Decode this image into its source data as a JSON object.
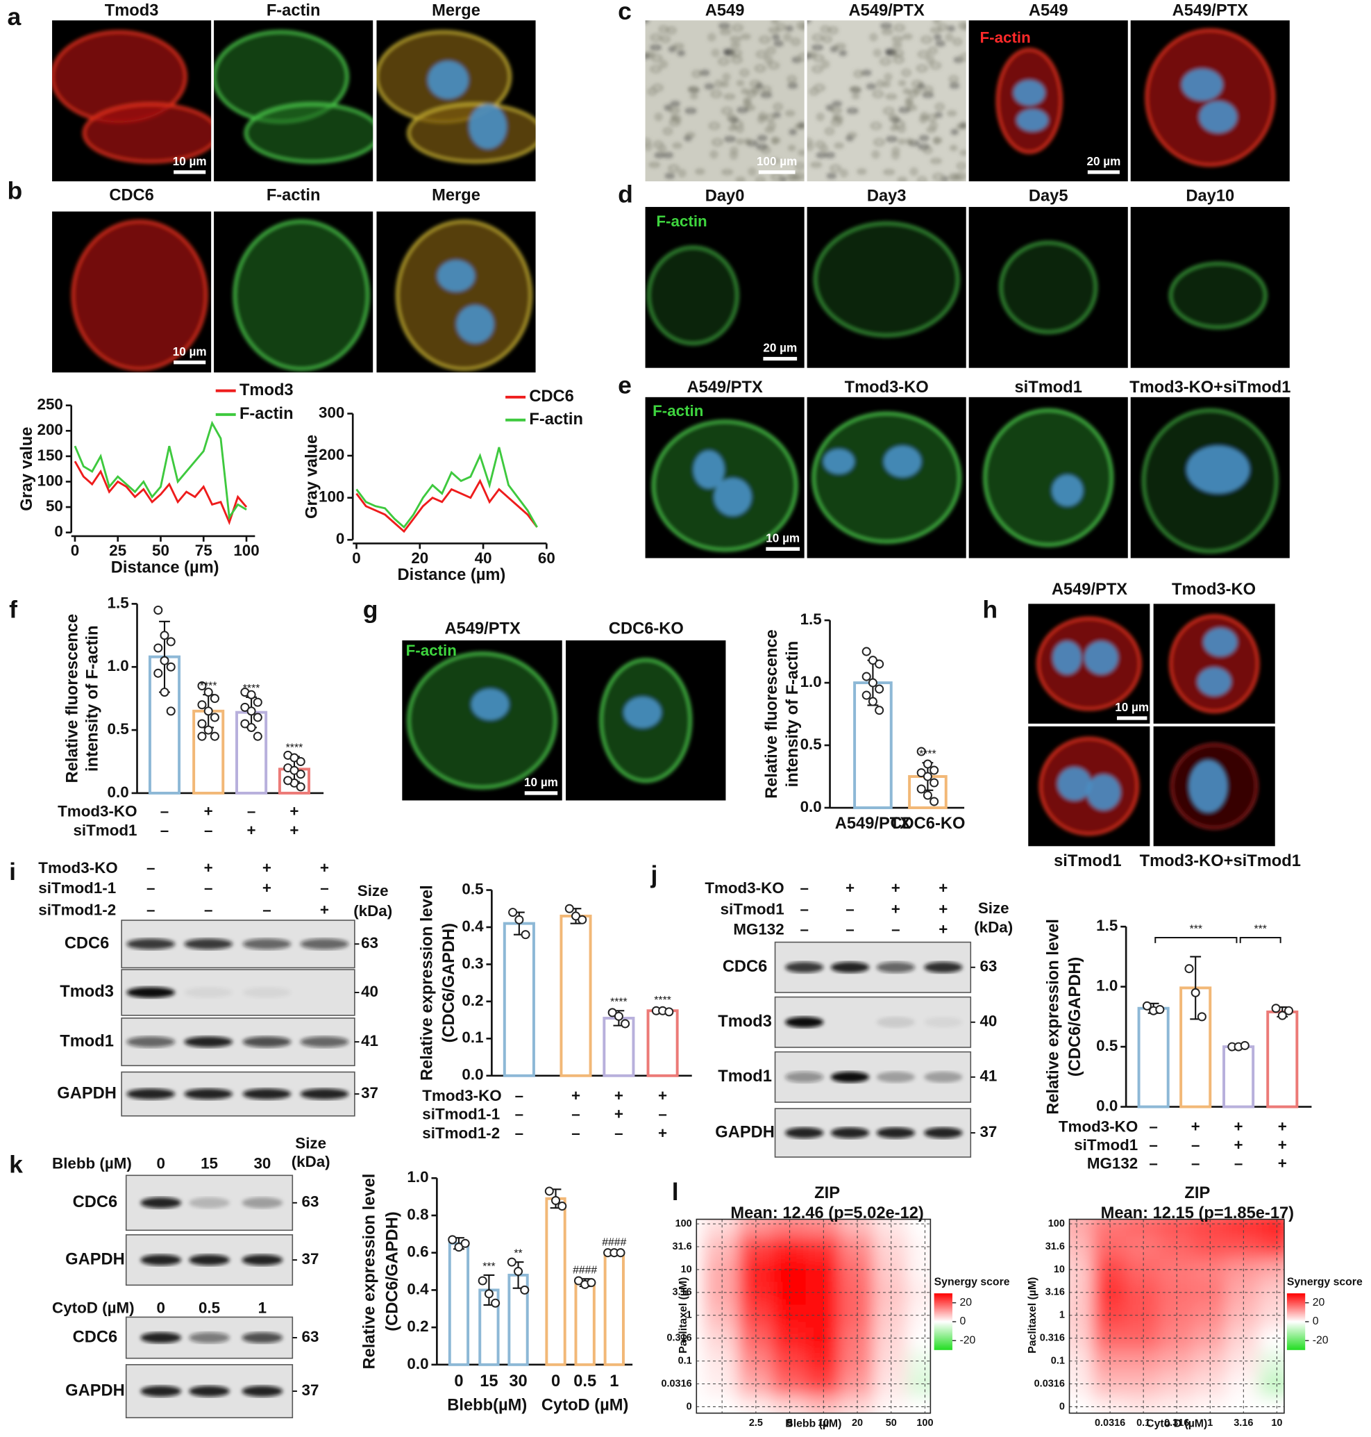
{
  "panel_labels": [
    "a",
    "b",
    "c",
    "d",
    "e",
    "f",
    "g",
    "h",
    "i",
    "j",
    "k",
    "l"
  ],
  "panel_a": {
    "headers": [
      "Tmod3",
      "F-actin",
      "Merge"
    ],
    "scale_bar": "10 µm"
  },
  "panel_b": {
    "headers": [
      "CDC6",
      "F-actin",
      "Merge"
    ],
    "scale_bar": "10 µm"
  },
  "panel_c": {
    "headers": [
      "A549",
      "A549/PTX",
      "A549",
      "A549/PTX"
    ],
    "stain": "F-actin",
    "scale_bars": [
      "100 µm",
      "20 µm"
    ]
  },
  "panel_d": {
    "headers": [
      "Day0",
      "Day3",
      "Day5",
      "Day10"
    ],
    "stain": "F-actin",
    "scale_bar": "20 µm"
  },
  "panel_e": {
    "headers": [
      "A549/PTX",
      "Tmod3-KO",
      "siTmod1",
      "Tmod3-KO+siTmod1"
    ],
    "stain": "F-actin",
    "scale_bar": "10 µm"
  },
  "panel_g_images": {
    "headers": [
      "A549/PTX",
      "CDC6-KO"
    ],
    "stain": "F-actin",
    "scale_bar": "10 µm"
  },
  "panel_h": {
    "headers": [
      "A549/PTX",
      "Tmod3-KO"
    ],
    "footers": [
      "siTmod1",
      "Tmod3-KO+siTmod1"
    ],
    "scale_bar": "10 µm"
  },
  "blot_i": {
    "conditions": [
      {
        "name": "Tmod3-KO",
        "signs": [
          "–",
          "+",
          "+",
          "+"
        ]
      },
      {
        "name": "siTmod1-1",
        "signs": [
          "–",
          "–",
          "+",
          "–"
        ]
      },
      {
        "name": "siTmod1-2",
        "signs": [
          "–",
          "–",
          "–",
          "+"
        ]
      }
    ],
    "size_label": [
      "Size",
      "(kDa)"
    ],
    "rows": [
      {
        "name": "CDC6",
        "kda": 63
      },
      {
        "name": "Tmod3",
        "kda": 40
      },
      {
        "name": "Tmod1",
        "kda": 41
      },
      {
        "name": "GAPDH",
        "kda": 37
      }
    ]
  },
  "blot_j": {
    "conditions": [
      {
        "name": "Tmod3-KO",
        "signs": [
          "–",
          "+",
          "+",
          "+"
        ]
      },
      {
        "name": "siTmod1",
        "signs": [
          "–",
          "–",
          "+",
          "+"
        ]
      },
      {
        "name": "MG132",
        "signs": [
          "–",
          "–",
          "–",
          "+"
        ]
      }
    ],
    "size_label": [
      "Size",
      "(kDa)"
    ],
    "rows": [
      {
        "name": "CDC6",
        "kda": 63
      },
      {
        "name": "Tmod3",
        "kda": 40
      },
      {
        "name": "Tmod1",
        "kda": 41
      },
      {
        "name": "GAPDH",
        "kda": 37
      }
    ]
  },
  "blot_k": {
    "size_label": [
      "Size",
      "(kDa)"
    ],
    "treatments": [
      {
        "name": "Blebb (µM)",
        "doses": [
          "0",
          "15",
          "30"
        ],
        "rows": [
          {
            "name": "CDC6",
            "kda": 63
          },
          {
            "name": "GAPDH",
            "kda": 37
          }
        ]
      },
      {
        "name": "CytoD (µM)",
        "doses": [
          "0",
          "0.5",
          "1"
        ],
        "rows": [
          {
            "name": "CDC6",
            "kda": 63
          },
          {
            "name": "GAPDH",
            "kda": 37
          }
        ]
      }
    ]
  },
  "chart_data": [
    {
      "type": "line",
      "xlabel": "Distance (µm)",
      "ylabel": "Gray value",
      "xlim": [
        0,
        105
      ],
      "ylim": [
        0,
        250
      ],
      "xticks": [
        0,
        25,
        50,
        75,
        100
      ],
      "yticks": [
        0,
        50,
        100,
        150,
        200,
        250
      ],
      "x": [
        0,
        5,
        10,
        15,
        20,
        25,
        30,
        35,
        40,
        45,
        50,
        55,
        60,
        65,
        70,
        75,
        80,
        85,
        90,
        95,
        100
      ],
      "series": [
        {
          "name": "Tmod3",
          "color": "#ee1c1c",
          "values": [
            140,
            110,
            95,
            120,
            80,
            100,
            90,
            70,
            85,
            60,
            75,
            95,
            60,
            80,
            70,
            90,
            55,
            60,
            20,
            70,
            50
          ]
        },
        {
          "name": "F-actin",
          "color": "#3ec93e",
          "values": [
            170,
            130,
            120,
            150,
            90,
            110,
            95,
            80,
            100,
            70,
            90,
            170,
            100,
            120,
            140,
            160,
            215,
            185,
            30,
            55,
            45
          ]
        }
      ]
    },
    {
      "type": "line",
      "xlabel": "Distance (µm)",
      "ylabel": "Gray value",
      "xlim": [
        0,
        60
      ],
      "ylim": [
        0,
        300
      ],
      "xticks": [
        0,
        20,
        40,
        60
      ],
      "yticks": [
        0,
        100,
        200,
        300
      ],
      "x": [
        0,
        3,
        6,
        9,
        12,
        15,
        18,
        21,
        24,
        27,
        30,
        33,
        36,
        39,
        42,
        45,
        48,
        51,
        54,
        57
      ],
      "series": [
        {
          "name": "CDC6",
          "color": "#ee1c1c",
          "values": [
            110,
            80,
            70,
            60,
            40,
            20,
            50,
            80,
            100,
            90,
            120,
            110,
            100,
            140,
            90,
            120,
            100,
            80,
            60,
            30
          ]
        },
        {
          "name": "F-actin",
          "color": "#3ec93e",
          "values": [
            120,
            90,
            80,
            75,
            50,
            30,
            60,
            100,
            130,
            110,
            160,
            140,
            150,
            200,
            130,
            220,
            130,
            100,
            70,
            30
          ]
        }
      ]
    },
    {
      "type": "bar",
      "ylabel": [
        "Relative  fluorescence",
        "intensity of F-actin"
      ],
      "ylim": [
        0,
        1.5
      ],
      "yticks": [
        {
          "value": 0,
          "label": "0.0"
        },
        {
          "value": 0.5,
          "label": "0.5"
        },
        {
          "value": 1,
          "label": "1.0"
        },
        {
          "value": 1.5,
          "label": "1.5"
        }
      ],
      "colors": [
        "#8db8d6",
        "#f2b877",
        "#b8b0dc",
        "#ec7a77"
      ],
      "values": [
        1.08,
        0.65,
        0.64,
        0.19
      ],
      "errors": [
        0.28,
        0.13,
        0.12,
        0.1
      ],
      "points": [
        [
          1.45,
          1.25,
          1.2,
          1.15,
          1.05,
          1.0,
          0.95,
          0.8,
          0.65
        ],
        [
          0.85,
          0.8,
          0.75,
          0.7,
          0.65,
          0.6,
          0.55,
          0.5,
          0.45,
          0.45
        ],
        [
          0.8,
          0.78,
          0.72,
          0.68,
          0.65,
          0.6,
          0.55,
          0.52,
          0.45
        ],
        [
          0.3,
          0.28,
          0.25,
          0.2,
          0.18,
          0.15,
          0.1,
          0.08,
          0.05,
          0.1
        ]
      ],
      "significance": [
        null,
        "****",
        "****",
        "****"
      ],
      "conditions": [
        {
          "name": "Tmod3-KO",
          "signs": [
            "–",
            "+",
            "–",
            "+"
          ]
        },
        {
          "name": "siTmod1",
          "signs": [
            "–",
            "–",
            "+",
            "+"
          ]
        }
      ]
    },
    {
      "type": "bar",
      "ylabel": [
        "Relative  fluorescence",
        "intensity of F-actin"
      ],
      "ylim": [
        0,
        1.5
      ],
      "yticks": [
        {
          "value": 0,
          "label": "0.0"
        },
        {
          "value": 0.5,
          "label": "0.5"
        },
        {
          "value": 1,
          "label": "1.0"
        },
        {
          "value": 1.5,
          "label": "1.5"
        }
      ],
      "categories": [
        "A549/PTX",
        "CDC6-KO"
      ],
      "colors": [
        "#8db8d6",
        "#f2b877"
      ],
      "values": [
        1.0,
        0.25
      ],
      "errors": [
        0.18,
        0.11
      ],
      "points": [
        [
          1.25,
          1.18,
          1.15,
          1.05,
          1.0,
          0.95,
          0.9,
          0.85,
          0.78
        ],
        [
          0.45,
          0.35,
          0.3,
          0.28,
          0.25,
          0.2,
          0.15,
          0.1,
          0.05
        ]
      ],
      "significance": [
        null,
        "****"
      ]
    },
    {
      "type": "bar",
      "ylabel": [
        "Relative expression level",
        "(CDC6/GAPDH)"
      ],
      "ylim": [
        0,
        0.5
      ],
      "yticks": [
        {
          "value": 0,
          "label": "0.0"
        },
        0.1,
        0.2,
        0.3,
        0.4,
        0.5
      ],
      "colors": [
        "#8db8d6",
        "#f2b877",
        "#b8b0dc",
        "#ec7a77"
      ],
      "values": [
        0.41,
        0.43,
        0.155,
        0.175
      ],
      "errors": [
        0.03,
        0.02,
        0.02,
        0.005
      ],
      "points": [
        [
          0.44,
          0.42,
          0.38
        ],
        [
          0.45,
          0.43,
          0.42
        ],
        [
          0.17,
          0.16,
          0.14
        ],
        [
          0.175,
          0.175,
          0.172
        ]
      ],
      "significance": [
        null,
        null,
        "****",
        "****"
      ],
      "conditions": [
        {
          "name": "Tmod3-KO",
          "signs": [
            "–",
            "+",
            "+",
            "+"
          ]
        },
        {
          "name": "siTmod1-1",
          "signs": [
            "–",
            "–",
            "+",
            "–"
          ]
        },
        {
          "name": "siTmod1-2",
          "signs": [
            "–",
            "–",
            "–",
            "+"
          ]
        }
      ]
    },
    {
      "type": "bar",
      "ylabel": [
        "Relative expression level",
        "(CDC6/GAPDH)"
      ],
      "ylim": [
        0,
        1.5
      ],
      "yticks": [
        {
          "value": 0,
          "label": "0.0"
        },
        {
          "value": 0.5,
          "label": "0.5"
        },
        {
          "value": 1,
          "label": "1.0"
        },
        {
          "value": 1.5,
          "label": "1.5"
        }
      ],
      "colors": [
        "#8db8d6",
        "#f2b877",
        "#b8b0dc",
        "#ec7a77"
      ],
      "values": [
        0.82,
        0.99,
        0.5,
        0.79
      ],
      "errors": [
        0.04,
        0.26,
        0.01,
        0.04
      ],
      "points": [
        [
          0.84,
          0.8,
          0.81
        ],
        [
          1.15,
          0.95,
          0.75
        ],
        [
          0.5,
          0.5,
          0.51
        ],
        [
          0.82,
          0.76,
          0.8
        ]
      ],
      "comparisons": [
        {
          "pair": [
            0,
            2
          ],
          "label": "***"
        },
        {
          "pair": [
            2,
            3
          ],
          "label": "***"
        }
      ],
      "conditions": [
        {
          "name": "Tmod3-KO",
          "signs": [
            "–",
            "+",
            "+",
            "+"
          ]
        },
        {
          "name": "siTmod1",
          "signs": [
            "–",
            "–",
            "+",
            "+"
          ]
        },
        {
          "name": "MG132",
          "signs": [
            "–",
            "–",
            "–",
            "+"
          ]
        }
      ]
    },
    {
      "type": "bar",
      "ylabel": [
        "Relative expression level",
        "(CDC6/GAPDH)"
      ],
      "ylim": [
        0,
        1
      ],
      "yticks": [
        {
          "value": 0,
          "label": "0.0"
        },
        0.2,
        0.4,
        0.6,
        0.8,
        {
          "value": 1,
          "label": "1.0"
        }
      ],
      "categories": [
        "0",
        "15",
        "30",
        "0",
        "0.5",
        "1"
      ],
      "group_labels": [
        "Blebb(µM)",
        "CytoD (µM)"
      ],
      "colors": [
        "#8db8d6",
        "#8db8d6",
        "#8db8d6",
        "#f2b877",
        "#f2b877",
        "#f2b877"
      ],
      "values": [
        0.65,
        0.4,
        0.48,
        0.89,
        0.44,
        0.6
      ],
      "errors": [
        0.03,
        0.08,
        0.07,
        0.05,
        0.02,
        0.01
      ],
      "points": [
        [
          0.67,
          0.63,
          0.65
        ],
        [
          0.45,
          0.38,
          0.33
        ],
        [
          0.55,
          0.5,
          0.4
        ],
        [
          0.93,
          0.88,
          0.85
        ],
        [
          0.45,
          0.43,
          0.44
        ],
        [
          0.6,
          0.6,
          0.6
        ]
      ],
      "significance": [
        null,
        "***",
        "**",
        null,
        "####",
        "####"
      ]
    },
    {
      "type": "heatmap",
      "title": "ZIP",
      "subtitle": "Mean: 12.46 (p=5.02e-12)",
      "xlabel": "Blebb (µM)",
      "ylabel": "Paclitaxel (µM)",
      "x_categories": [
        null,
        "2.5",
        "5",
        "10",
        "20",
        "50",
        "100"
      ],
      "y_categories": [
        "0",
        "0.0316",
        "0.1",
        "0.316",
        "1",
        "3.16",
        "10",
        "31.6",
        "100"
      ],
      "values": [
        [
          0,
          2,
          5,
          8,
          5,
          1,
          0
        ],
        [
          2,
          10,
          18,
          22,
          12,
          3,
          -5
        ],
        [
          3,
          14,
          22,
          26,
          15,
          4,
          -3
        ],
        [
          5,
          18,
          26,
          28,
          16,
          5,
          0
        ],
        [
          8,
          22,
          28,
          28,
          18,
          6,
          1
        ],
        [
          10,
          25,
          30,
          28,
          18,
          7,
          2
        ],
        [
          10,
          26,
          30,
          28,
          17,
          6,
          1
        ],
        [
          8,
          22,
          26,
          24,
          14,
          5,
          1
        ],
        [
          4,
          12,
          15,
          14,
          8,
          3,
          0
        ]
      ],
      "legend_title": "Synergy score",
      "clim": [
        -30,
        30
      ],
      "colorbar_ticks": [
        20,
        0,
        -20
      ]
    },
    {
      "type": "heatmap",
      "title": "ZIP",
      "subtitle": "Mean: 12.15 (p=1.85e-17)",
      "xlabel": "Cyto D (µM)",
      "ylabel": "Paclitaxel (µM)",
      "x_categories": [
        null,
        "0.0316",
        "0.1",
        "0.316",
        "1",
        "3.16",
        "10"
      ],
      "y_categories": [
        "0",
        "0.0316",
        "0.1",
        "0.316",
        "1",
        "3.16",
        "10",
        "31.6",
        "100"
      ],
      "values": [
        [
          0,
          2,
          3,
          2,
          1,
          0,
          0
        ],
        [
          2,
          8,
          8,
          6,
          4,
          1,
          -8
        ],
        [
          3,
          12,
          12,
          10,
          7,
          3,
          -4
        ],
        [
          5,
          18,
          18,
          14,
          11,
          5,
          0
        ],
        [
          6,
          22,
          20,
          16,
          14,
          8,
          4
        ],
        [
          6,
          24,
          20,
          17,
          16,
          10,
          6
        ],
        [
          6,
          22,
          18,
          16,
          15,
          12,
          10
        ],
        [
          8,
          18,
          16,
          18,
          20,
          20,
          22
        ],
        [
          10,
          16,
          18,
          20,
          22,
          24,
          26
        ]
      ],
      "legend_title": "Synergy score",
      "clim": [
        -30,
        30
      ],
      "colorbar_ticks": [
        20,
        0,
        -20
      ]
    }
  ]
}
